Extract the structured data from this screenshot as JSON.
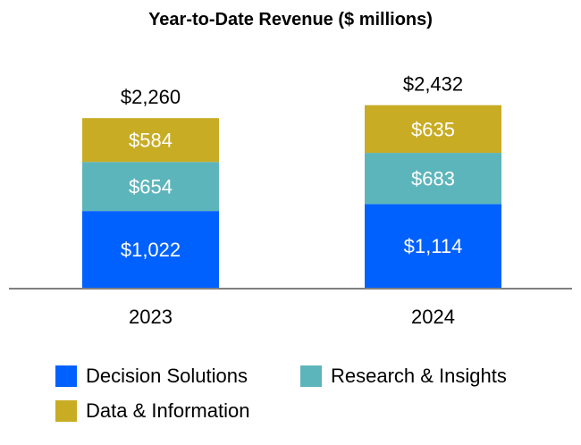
{
  "chart_data": {
    "type": "bar",
    "stacked": true,
    "title": "Year-to-Date Revenue ($ millions)",
    "categories": [
      "2023",
      "2024"
    ],
    "series": [
      {
        "name": "Decision Solutions",
        "values": [
          1022,
          1114
        ],
        "labels": [
          "$1,022",
          "$1,114"
        ],
        "color": "#0061FE"
      },
      {
        "name": "Research & Insights",
        "values": [
          654,
          683
        ],
        "labels": [
          "$654",
          "$683"
        ],
        "color": "#5DB5BC"
      },
      {
        "name": "Data & Information",
        "values": [
          584,
          635
        ],
        "labels": [
          "$584",
          "$635"
        ],
        "color": "#C8AC24"
      }
    ],
    "totals": [
      2260,
      2432
    ],
    "total_labels": [
      "$2,260",
      "$2,432"
    ],
    "ylim": [
      0,
      2432
    ],
    "grid": false,
    "legend_position": "bottom"
  }
}
